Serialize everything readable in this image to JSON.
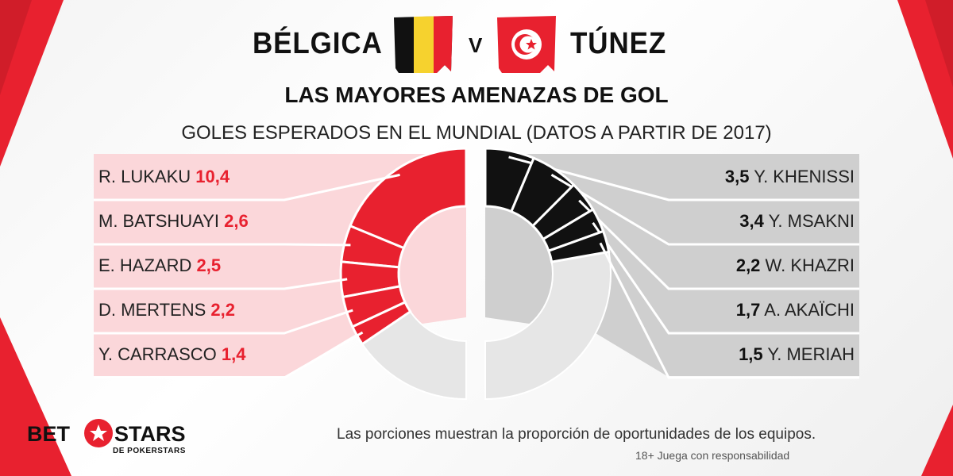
{
  "header": {
    "team_left": "BÉLGICA",
    "vs": "V",
    "team_right": "TÚNEZ",
    "title": "LAS MAYORES AMENAZAS DE GOL",
    "subtitle": "GOLES ESPERADOS EN EL MUNDIAL (DATOS A PARTIR DE 2017)"
  },
  "colors": {
    "belgium": "#e8212f",
    "belgium_panel": "#fbd7da",
    "tunisia": "#111111",
    "tunisia_panel": "#cfcfcf",
    "remainder": "#e6e6e6"
  },
  "chart_data": {
    "type": "pie",
    "note": "Las porciones muestran la proporción de oportunidades de los equipos.",
    "series": [
      {
        "name": "BÉLGICA",
        "players": [
          {
            "name": "R. LUKAKU",
            "value": 10.4,
            "display": "10,4"
          },
          {
            "name": "M. BATSHUAYI",
            "value": 2.6,
            "display": "2,6"
          },
          {
            "name": "E. HAZARD",
            "value": 2.5,
            "display": "2,5"
          },
          {
            "name": "D. MERTENS",
            "value": 2.2,
            "display": "2,2"
          },
          {
            "name": "Y. CARRASCO",
            "value": 1.4,
            "display": "1,4"
          }
        ]
      },
      {
        "name": "TÚNEZ",
        "players": [
          {
            "name": "Y. KHENISSI",
            "value": 3.5,
            "display": "3,5"
          },
          {
            "name": "Y. MSAKNI",
            "value": 3.4,
            "display": "3,4"
          },
          {
            "name": "W. KHAZRI",
            "value": 2.2,
            "display": "2,2"
          },
          {
            "name": "A. AKAÏCHI",
            "value": 1.7,
            "display": "1,7"
          },
          {
            "name": "Y. MERIAH",
            "value": 1.5,
            "display": "1,5"
          }
        ]
      }
    ]
  },
  "footer": {
    "logo_bet": "BET",
    "logo_stars": "STARS",
    "logo_sub": "DE POKERSTARS",
    "note": "Las porciones muestran la proporción de oportunidades de los equipos.",
    "disclaimer": "18+ Juega con responsabilidad"
  }
}
